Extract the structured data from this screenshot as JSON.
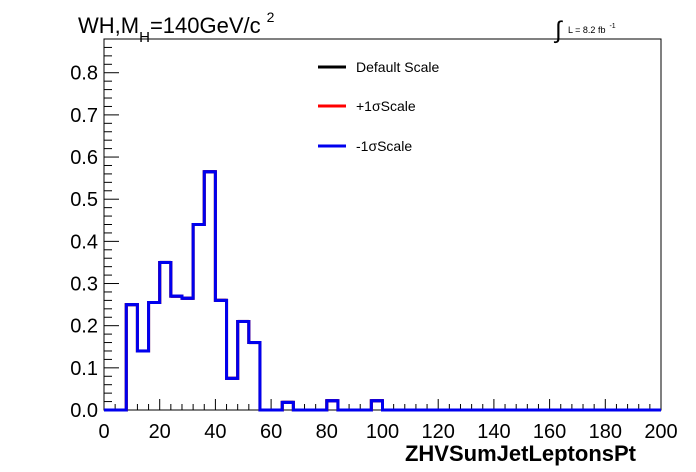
{
  "chart_data": {
    "type": "line",
    "title": {
      "main": "WH,M",
      "subscript": "H",
      "rest": "=140GeV/c",
      "superscript": "2"
    },
    "lumi": {
      "text": "L = 8.2 fb",
      "superscript": "-1"
    },
    "xlabel": "ZHVSumJetLeptonsPt",
    "ylabel": "",
    "xlim": [
      0,
      200
    ],
    "ylim": [
      0,
      0.88
    ],
    "x_ticks": [
      "0",
      "20",
      "40",
      "60",
      "80",
      "100",
      "120",
      "140",
      "160",
      "180",
      "200"
    ],
    "y_ticks": [
      "0.0",
      "0.1",
      "0.2",
      "0.3",
      "0.4",
      "0.5",
      "0.6",
      "0.7",
      "0.8"
    ],
    "bin_width": 4,
    "bin_edges_start": 0,
    "series": [
      {
        "name": "Default Scale",
        "color": "#000000",
        "values": [
          0,
          0,
          0.25,
          0.14,
          0.255,
          0.35,
          0.27,
          0.265,
          0.44,
          0.565,
          0.26,
          0.075,
          0.21,
          0.16,
          0,
          0,
          0.018,
          0,
          0,
          0,
          0.022,
          0,
          0,
          0,
          0.022,
          0,
          0,
          0,
          0,
          0,
          0,
          0,
          0,
          0,
          0,
          0,
          0,
          0,
          0,
          0,
          0,
          0,
          0,
          0,
          0,
          0,
          0,
          0,
          0,
          0
        ]
      },
      {
        "name": "+1σScale",
        "color": "#ff0000",
        "values": [
          0,
          0,
          0.25,
          0.14,
          0.255,
          0.35,
          0.27,
          0.265,
          0.44,
          0.565,
          0.26,
          0.075,
          0.21,
          0.16,
          0,
          0,
          0.018,
          0,
          0,
          0,
          0.022,
          0,
          0,
          0,
          0.022,
          0,
          0,
          0,
          0,
          0,
          0,
          0,
          0,
          0,
          0,
          0,
          0,
          0,
          0,
          0,
          0,
          0,
          0,
          0,
          0,
          0,
          0,
          0,
          0,
          0
        ]
      },
      {
        "name": "-1σScale",
        "color": "#0000ee",
        "values": [
          0,
          0,
          0.25,
          0.14,
          0.255,
          0.35,
          0.27,
          0.265,
          0.44,
          0.565,
          0.26,
          0.075,
          0.21,
          0.16,
          0,
          0,
          0.018,
          0,
          0,
          0,
          0.022,
          0,
          0,
          0,
          0.022,
          0,
          0,
          0,
          0,
          0,
          0,
          0,
          0,
          0,
          0,
          0,
          0,
          0,
          0,
          0,
          0,
          0,
          0,
          0,
          0,
          0,
          0,
          0,
          0,
          0
        ]
      }
    ],
    "legend_placement": "top-center",
    "grid": false
  }
}
